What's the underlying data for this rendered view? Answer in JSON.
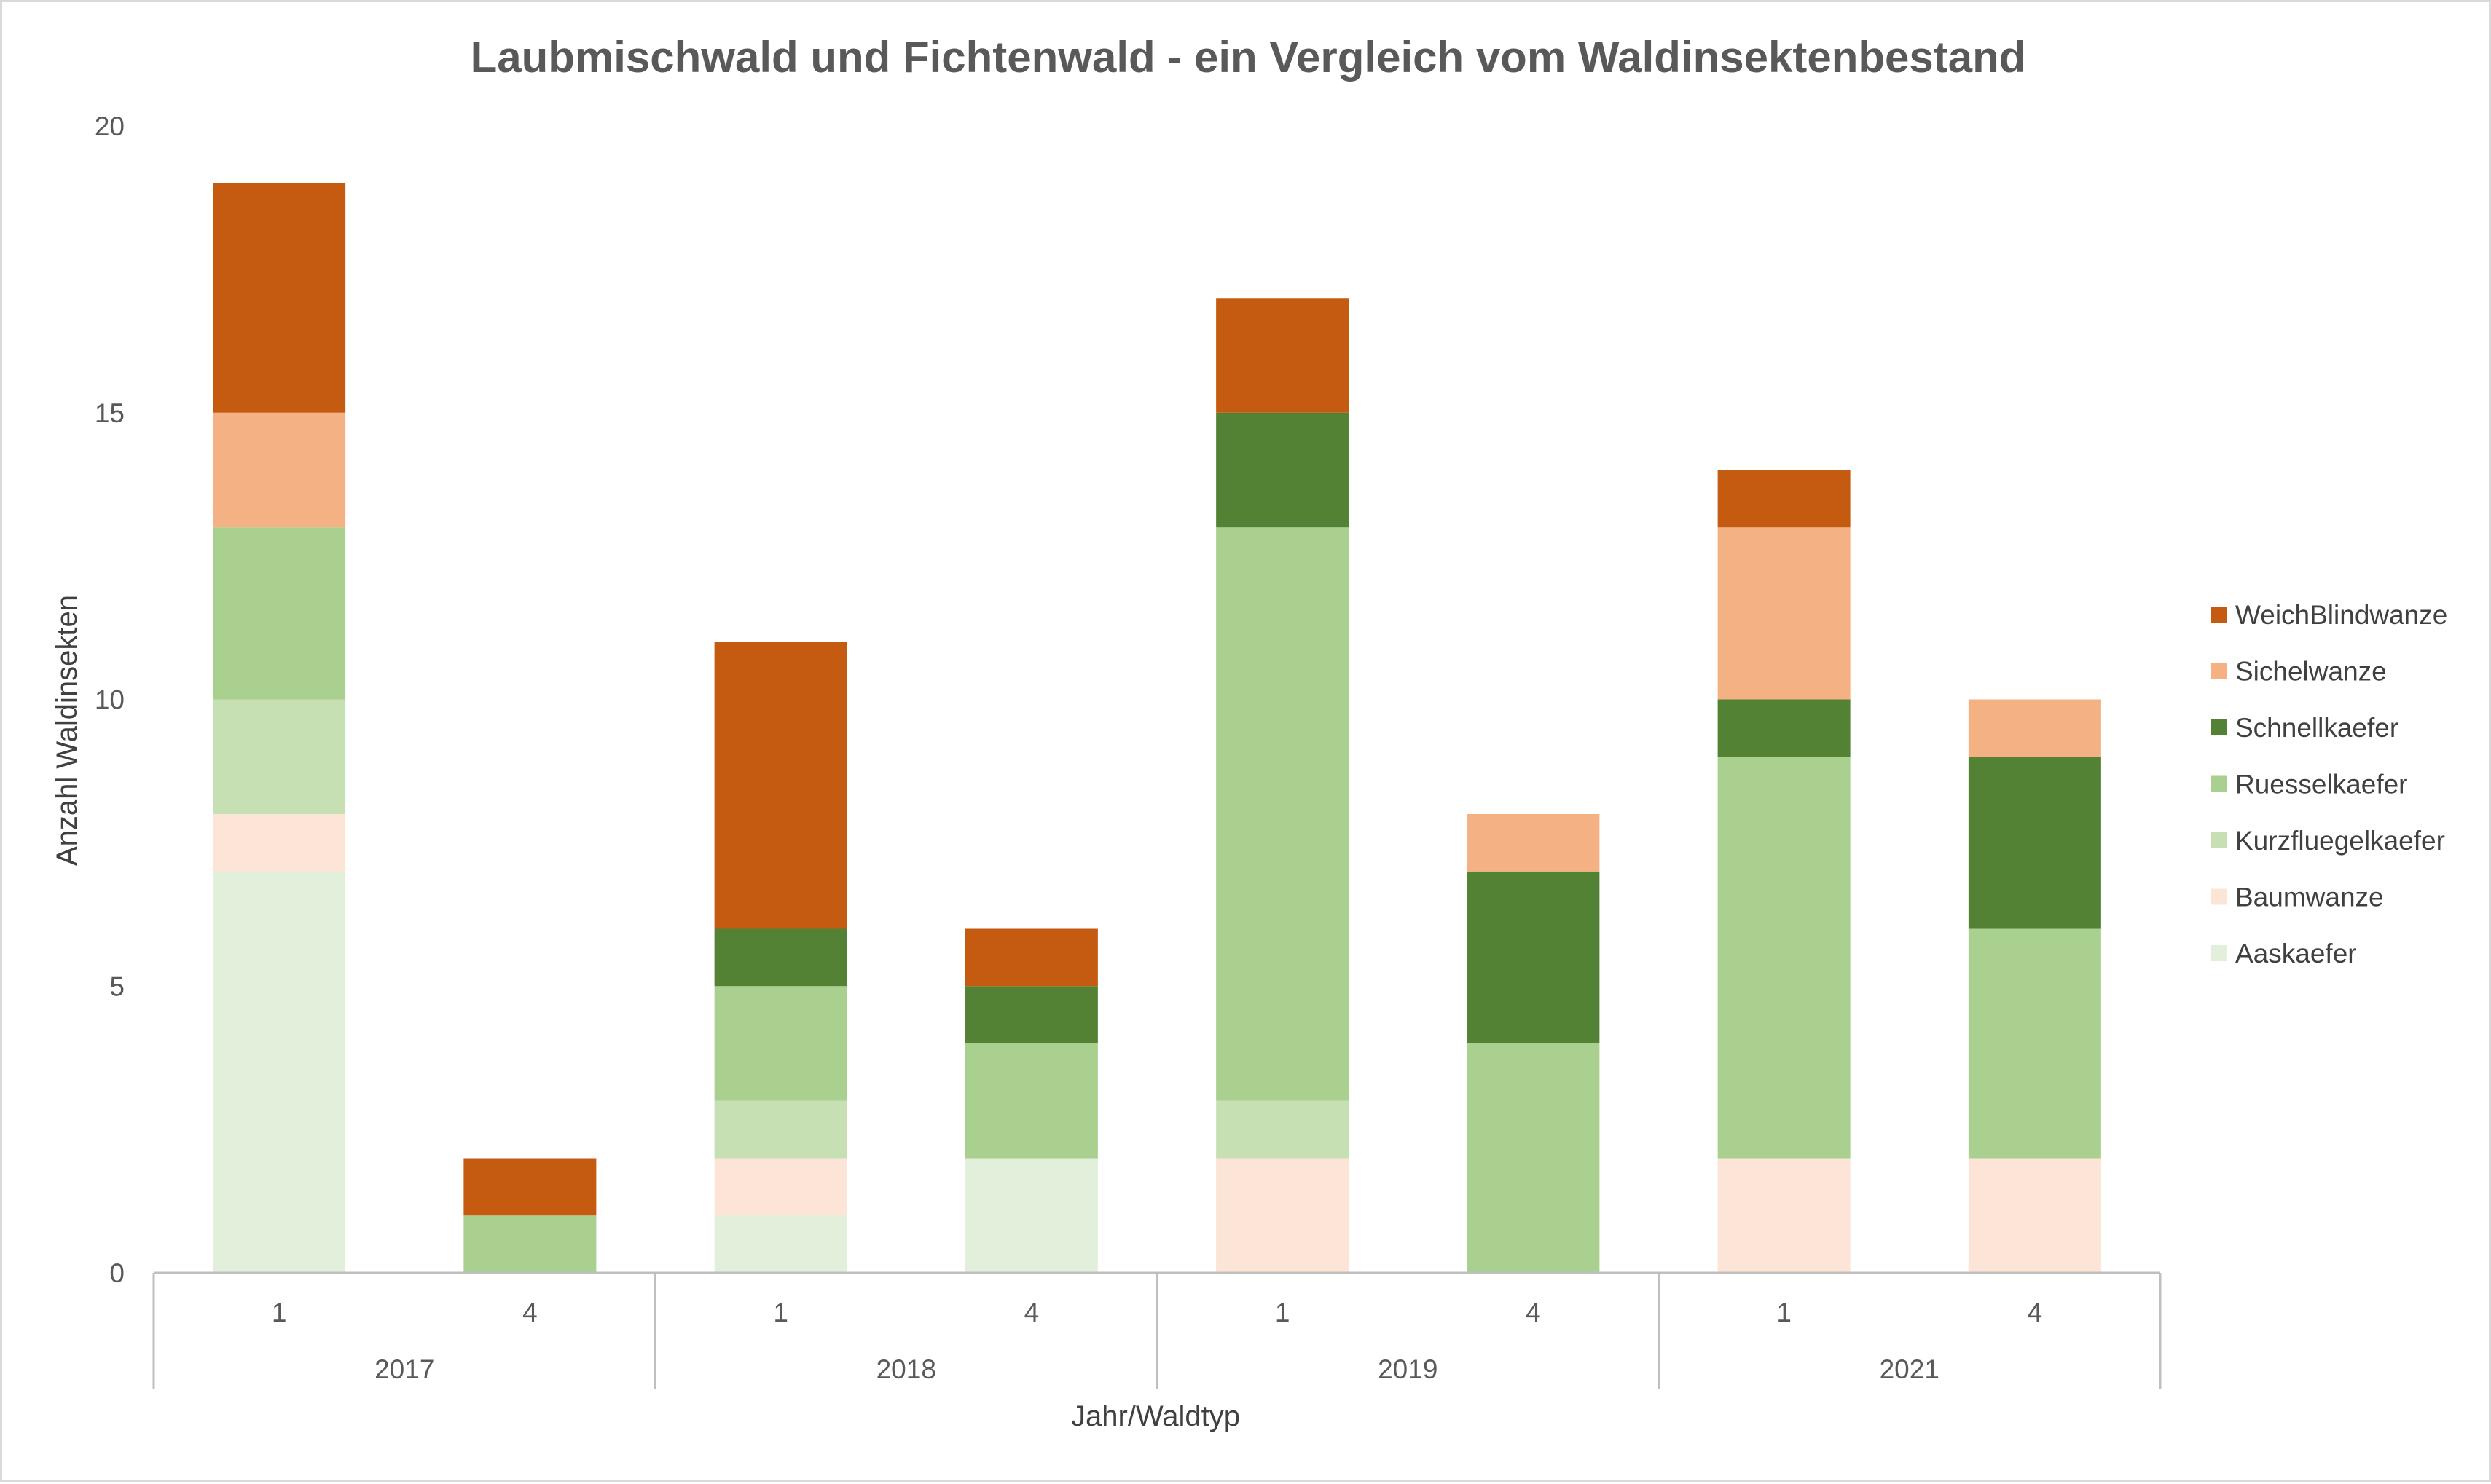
{
  "chart_data": {
    "type": "bar",
    "stacked": true,
    "title": "Laubmischwald und Fichtenwald - ein Vergleich vom Waldinsektenbestand",
    "xlabel": "Jahr/Waldtyp",
    "ylabel": "Anzahl Waldinsekten",
    "ylim": [
      0,
      20
    ],
    "yticks": [
      0,
      5,
      10,
      15,
      20
    ],
    "grid": false,
    "legend_position": "right",
    "groups": [
      {
        "label": "2017",
        "categories": [
          "1",
          "4"
        ]
      },
      {
        "label": "2018",
        "categories": [
          "1",
          "4"
        ]
      },
      {
        "label": "2019",
        "categories": [
          "1",
          "4"
        ]
      },
      {
        "label": "2021",
        "categories": [
          "1",
          "4"
        ]
      }
    ],
    "series": [
      {
        "name": "Aaskaefer",
        "color": "#e2efda",
        "values": [
          7,
          0,
          1,
          2,
          0,
          0,
          0,
          0
        ]
      },
      {
        "name": "Baumwanze",
        "color": "#fce4d6",
        "values": [
          1,
          0,
          1,
          0,
          2,
          0,
          2,
          2
        ]
      },
      {
        "name": "Kurzfluegelkaefer",
        "color": "#c6e0b4",
        "values": [
          2,
          0,
          1,
          0,
          1,
          0,
          0,
          0
        ]
      },
      {
        "name": "Ruesselkaefer",
        "color": "#a9d08e",
        "values": [
          3,
          1,
          2,
          2,
          10,
          4,
          7,
          4
        ]
      },
      {
        "name": "Schnellkaefer",
        "color": "#548235",
        "values": [
          0,
          0,
          1,
          1,
          2,
          3,
          1,
          3
        ]
      },
      {
        "name": "Sichelwanze",
        "color": "#f4b183",
        "values": [
          2,
          0,
          0,
          0,
          0,
          1,
          3,
          1
        ]
      },
      {
        "name": "WeichBlindwanze",
        "color": "#c55a11",
        "values": [
          4,
          1,
          5,
          1,
          2,
          0,
          1,
          0
        ]
      }
    ]
  }
}
